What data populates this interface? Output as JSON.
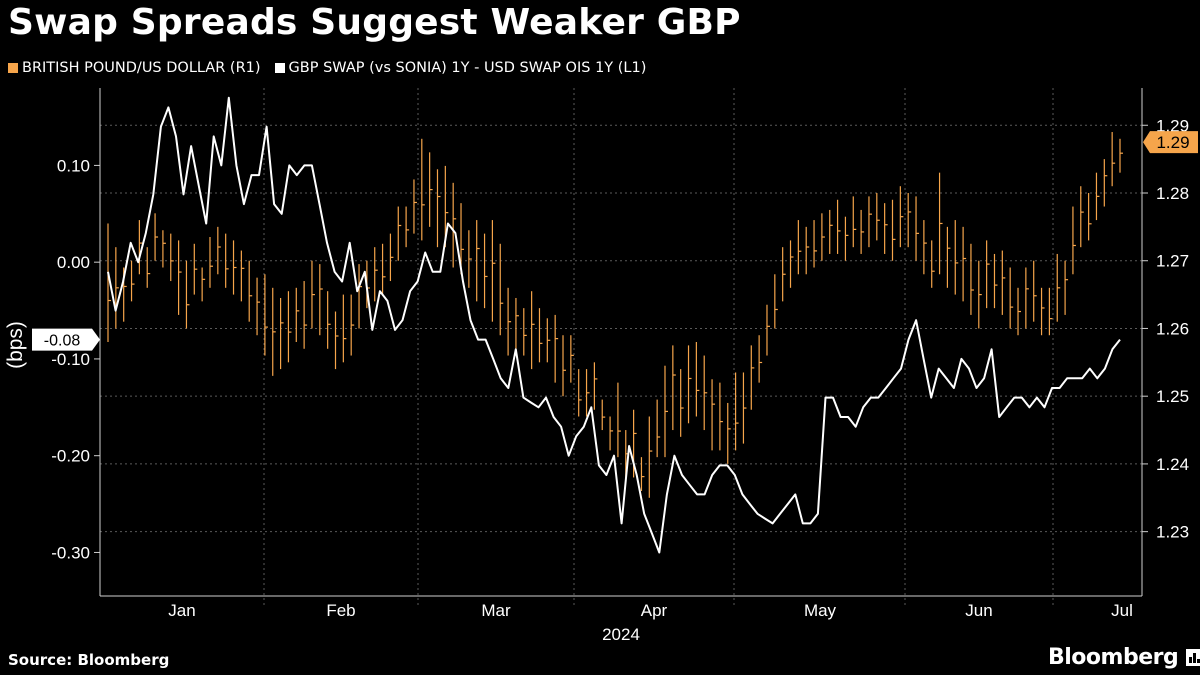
{
  "title": "Swap Spreads Suggest Weaker GBP",
  "legend": [
    {
      "label": "BRITISH POUND/US DOLLAR (R1)",
      "color": "#f6a54b"
    },
    {
      "label": "GBP SWAP (vs SONIA) 1Y - USD SWAP OIS 1Y (L1)",
      "color": "#ffffff"
    }
  ],
  "footer": {
    "source": "Source: Bloomberg",
    "brand": "Bloomberg"
  },
  "chart_data": {
    "type": "line",
    "title": "Swap Spreads Suggest Weaker GBP",
    "xlabel": "2024",
    "x_ticks": [
      "Jan",
      "Feb",
      "Mar",
      "Apr",
      "May",
      "Jun",
      "Jul"
    ],
    "left_axis": {
      "label": "(bps)",
      "range": [
        -0.345,
        0.18
      ],
      "ticks": [
        "0.10",
        "0.00",
        "-0.10",
        "-0.20",
        "-0.30"
      ],
      "tick_values": [
        0.1,
        0.0,
        -0.1,
        -0.2,
        -0.3
      ]
    },
    "right_axis": {
      "range": [
        1.2205,
        1.2955
      ],
      "ticks": [
        "1.29",
        "1.28",
        "1.27",
        "1.26",
        "1.25",
        "1.24",
        "1.23"
      ],
      "tick_values": [
        1.29,
        1.28,
        1.27,
        1.26,
        1.25,
        1.24,
        1.23
      ]
    },
    "grid": true,
    "last_value_labels": {
      "left": "-0.08",
      "right": "1.29"
    },
    "series": [
      {
        "name": "GBP SWAP (vs SONIA) 1Y - USD SWAP OIS 1Y (L1)",
        "axis": "left",
        "color": "#ffffff",
        "values": [
          -0.01,
          -0.05,
          -0.02,
          0.02,
          0.0,
          0.03,
          0.07,
          0.14,
          0.16,
          0.13,
          0.07,
          0.12,
          0.08,
          0.04,
          0.13,
          0.1,
          0.17,
          0.1,
          0.06,
          0.09,
          0.09,
          0.14,
          0.06,
          0.05,
          0.1,
          0.09,
          0.1,
          0.1,
          0.06,
          0.02,
          -0.01,
          -0.02,
          0.02,
          -0.03,
          -0.01,
          -0.07,
          -0.03,
          -0.04,
          -0.07,
          -0.06,
          -0.03,
          -0.02,
          0.01,
          -0.01,
          -0.01,
          0.04,
          0.03,
          -0.02,
          -0.06,
          -0.08,
          -0.08,
          -0.1,
          -0.12,
          -0.13,
          -0.09,
          -0.14,
          -0.145,
          -0.15,
          -0.14,
          -0.16,
          -0.17,
          -0.2,
          -0.18,
          -0.17,
          -0.15,
          -0.21,
          -0.22,
          -0.2,
          -0.27,
          -0.19,
          -0.22,
          -0.26,
          -0.28,
          -0.3,
          -0.24,
          -0.2,
          -0.22,
          -0.23,
          -0.24,
          -0.24,
          -0.22,
          -0.21,
          -0.21,
          -0.22,
          -0.24,
          -0.25,
          -0.26,
          -0.265,
          -0.27,
          -0.26,
          -0.25,
          -0.24,
          -0.27,
          -0.27,
          -0.26,
          -0.14,
          -0.14,
          -0.16,
          -0.16,
          -0.17,
          -0.15,
          -0.14,
          -0.14,
          -0.13,
          -0.12,
          -0.11,
          -0.08,
          -0.06,
          -0.1,
          -0.14,
          -0.11,
          -0.12,
          -0.13,
          -0.1,
          -0.11,
          -0.13,
          -0.12,
          -0.09,
          -0.16,
          -0.15,
          -0.14,
          -0.14,
          -0.15,
          -0.14,
          -0.15,
          -0.13,
          -0.13,
          -0.12,
          -0.12,
          -0.12,
          -0.11,
          -0.12,
          -0.11,
          -0.09,
          -0.08
        ]
      },
      {
        "name": "BRITISH POUND/US DOLLAR (R1)",
        "axis": "right",
        "color": "#f6a54b",
        "type": "hlc_bars",
        "high": [
          1.2755,
          1.272,
          1.269,
          1.27,
          1.276,
          1.272,
          1.277,
          1.2745,
          1.274,
          1.273,
          1.27,
          1.2725,
          1.269,
          1.2735,
          1.275,
          1.274,
          1.273,
          1.2715,
          1.27,
          1.2675,
          1.268,
          1.266,
          1.2645,
          1.2655,
          1.266,
          1.267,
          1.27,
          1.2695,
          1.2655,
          1.2625,
          1.265,
          1.265,
          1.2695,
          1.27,
          1.272,
          1.2725,
          1.274,
          1.278,
          1.278,
          1.282,
          1.288,
          1.286,
          1.2835,
          1.284,
          1.2815,
          1.2785,
          1.2745,
          1.276,
          1.274,
          1.276,
          1.2725,
          1.266,
          1.2645,
          1.263,
          1.2655,
          1.263,
          1.2615,
          1.262,
          1.259,
          1.259,
          1.254,
          1.254,
          1.255,
          1.2495,
          1.247,
          1.252,
          1.245,
          1.248,
          1.241,
          1.247,
          1.2495,
          1.2545,
          1.2575,
          1.254,
          1.2575,
          1.258,
          1.256,
          1.2525,
          1.252,
          1.249,
          1.2535,
          1.2535,
          1.2575,
          1.259,
          1.2635,
          1.268,
          1.272,
          1.273,
          1.276,
          1.275,
          1.276,
          1.277,
          1.2775,
          1.279,
          1.2765,
          1.2795,
          1.2775,
          1.2795,
          1.28,
          1.2785,
          1.279,
          1.281,
          1.28,
          1.2795,
          1.276,
          1.273,
          1.283,
          1.275,
          1.276,
          1.275,
          1.2725,
          1.27,
          1.273,
          1.271,
          1.2715,
          1.269,
          1.266,
          1.269,
          1.27,
          1.266,
          1.266,
          1.271,
          1.27,
          1.278,
          1.281,
          1.28,
          1.283,
          1.285,
          1.289,
          1.288
        ],
        "low": [
          1.258,
          1.26,
          1.261,
          1.264,
          1.268,
          1.266,
          1.27,
          1.269,
          1.267,
          1.262,
          1.26,
          1.265,
          1.264,
          1.266,
          1.268,
          1.266,
          1.265,
          1.264,
          1.261,
          1.259,
          1.256,
          1.253,
          1.254,
          1.255,
          1.258,
          1.257,
          1.26,
          1.259,
          1.257,
          1.254,
          1.255,
          1.256,
          1.26,
          1.263,
          1.264,
          1.265,
          1.267,
          1.27,
          1.272,
          1.274,
          1.273,
          1.275,
          1.272,
          1.272,
          1.269,
          1.268,
          1.266,
          1.264,
          1.263,
          1.261,
          1.259,
          1.256,
          1.257,
          1.256,
          1.254,
          1.255,
          1.255,
          1.252,
          1.25,
          1.252,
          1.247,
          1.247,
          1.248,
          1.245,
          1.242,
          1.241,
          1.238,
          1.238,
          1.236,
          1.235,
          1.241,
          1.241,
          1.245,
          1.244,
          1.246,
          1.247,
          1.245,
          1.242,
          1.242,
          1.24,
          1.242,
          1.243,
          1.248,
          1.252,
          1.256,
          1.26,
          1.264,
          1.266,
          1.268,
          1.268,
          1.269,
          1.27,
          1.271,
          1.271,
          1.27,
          1.272,
          1.271,
          1.272,
          1.273,
          1.271,
          1.27,
          1.272,
          1.272,
          1.27,
          1.268,
          1.266,
          1.268,
          1.266,
          1.265,
          1.264,
          1.262,
          1.26,
          1.263,
          1.263,
          1.262,
          1.26,
          1.259,
          1.26,
          1.261,
          1.259,
          1.259,
          1.261,
          1.262,
          1.268,
          1.272,
          1.273,
          1.276,
          1.278,
          1.281,
          1.283
        ]
      }
    ]
  }
}
